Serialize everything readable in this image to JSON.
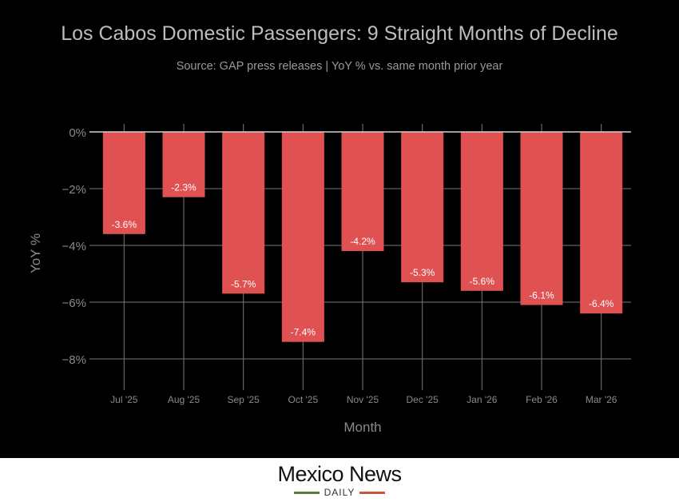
{
  "chart_data": {
    "type": "bar",
    "title": "Los Cabos Domestic Passengers: 9 Straight Months of Decline",
    "subtitle": "Source: GAP press releases | YoY % vs. same month prior year",
    "xlabel": "Month",
    "ylabel": "YoY %",
    "categories": [
      "Jul '25",
      "Aug '25",
      "Sep '25",
      "Oct '25",
      "Nov '25",
      "Dec '25",
      "Jan '26",
      "Feb '26",
      "Mar '26"
    ],
    "values": [
      -3.6,
      -2.3,
      -5.7,
      -7.4,
      -4.2,
      -5.3,
      -5.6,
      -6.1,
      -6.4
    ],
    "data_labels": [
      "-3.6%",
      "-2.3%",
      "-5.7%",
      "-7.4%",
      "-4.2%",
      "-5.3%",
      "-5.6%",
      "-6.1%",
      "-6.4%"
    ],
    "yticks": [
      0,
      -2,
      -4,
      -6,
      -8
    ],
    "ytick_labels": [
      "0%",
      "−2%",
      "−4%",
      "−6%",
      "−8%"
    ],
    "ylim": [
      -9.1,
      0
    ],
    "grid": true,
    "bar_color": "#e05252",
    "background": "#000000"
  },
  "footer": {
    "logo_main": "Mexico News",
    "logo_sub": "DAILY"
  }
}
